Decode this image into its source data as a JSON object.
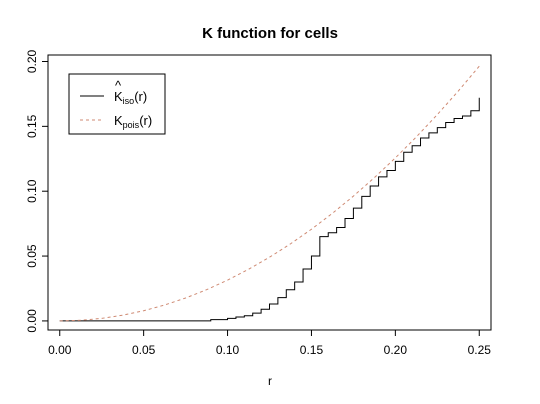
{
  "chart_data": {
    "type": "line",
    "title": "K function for cells",
    "xlabel": "r",
    "ylabel": "",
    "xlim": [
      -0.007,
      0.257
    ],
    "ylim": [
      -0.007,
      0.205
    ],
    "x_ticks": [
      "0.00",
      "0.05",
      "0.10",
      "0.15",
      "0.20",
      "0.25"
    ],
    "y_ticks": [
      "0.00",
      "0.05",
      "0.10",
      "0.15",
      "0.20"
    ],
    "grid": false,
    "legend_position": "top-left",
    "colors": {
      "iso": "#000000",
      "pois": "#cf8a73"
    },
    "series": [
      {
        "name": "K̂iso(r)",
        "legend_main": "K",
        "legend_sub": "iso",
        "legend_tail": "(r)",
        "style": "solid-step",
        "x": [
          0.0,
          0.08,
          0.09,
          0.1,
          0.105,
          0.11,
          0.115,
          0.12,
          0.125,
          0.13,
          0.135,
          0.14,
          0.145,
          0.15,
          0.155,
          0.16,
          0.165,
          0.17,
          0.175,
          0.18,
          0.185,
          0.19,
          0.195,
          0.2,
          0.205,
          0.21,
          0.215,
          0.22,
          0.225,
          0.23,
          0.235,
          0.24,
          0.245,
          0.25
        ],
        "y": [
          0.0,
          0.0,
          0.001,
          0.002,
          0.003,
          0.004,
          0.006,
          0.009,
          0.013,
          0.018,
          0.024,
          0.03,
          0.04,
          0.05,
          0.065,
          0.068,
          0.072,
          0.079,
          0.087,
          0.096,
          0.104,
          0.111,
          0.116,
          0.123,
          0.13,
          0.135,
          0.141,
          0.145,
          0.149,
          0.153,
          0.156,
          0.158,
          0.162,
          0.172
        ]
      },
      {
        "name": "Kpois(r)",
        "legend_main": "K",
        "legend_sub": "pois",
        "legend_tail": "(r)",
        "style": "dashed",
        "x": [
          0.0,
          0.0125,
          0.025,
          0.0375,
          0.05,
          0.0625,
          0.075,
          0.0875,
          0.1,
          0.1125,
          0.125,
          0.1375,
          0.15,
          0.1625,
          0.175,
          0.1875,
          0.2,
          0.2125,
          0.225,
          0.2375,
          0.25
        ],
        "y": [
          0.0,
          0.00049,
          0.00196,
          0.00442,
          0.00785,
          0.01227,
          0.01767,
          0.02405,
          0.03142,
          0.03976,
          0.04909,
          0.0594,
          0.07069,
          0.08296,
          0.09621,
          0.11045,
          0.12566,
          0.14186,
          0.15904,
          0.1772,
          0.19635
        ]
      }
    ]
  }
}
